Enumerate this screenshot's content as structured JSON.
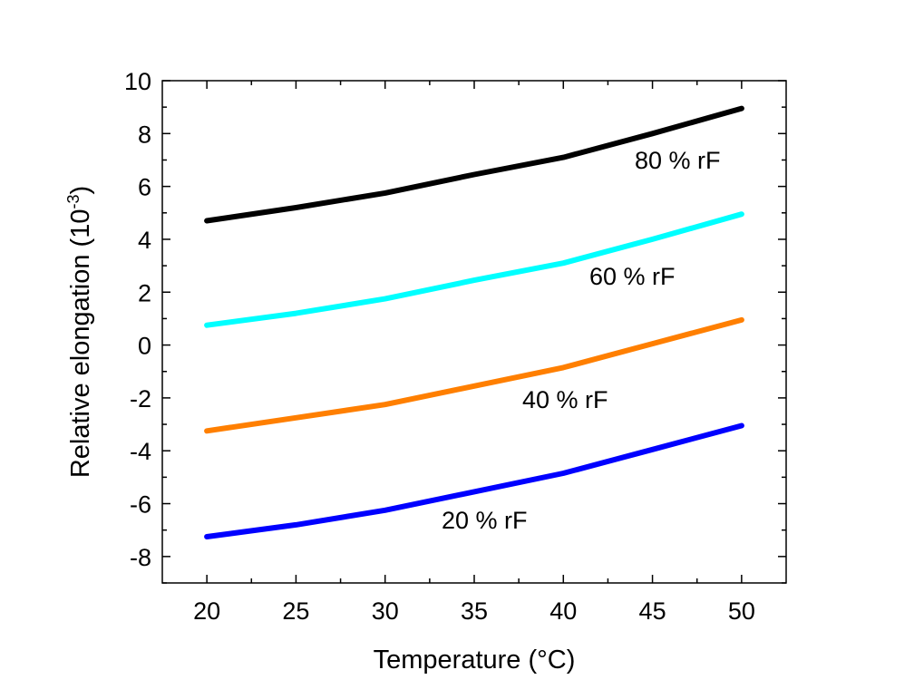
{
  "chart_data": {
    "type": "line",
    "title": "",
    "xlabel": "Temperature (°C)",
    "ylabel_text": "Relative elongation (10",
    "ylabel_exp": "-3",
    "ylabel_close": ")",
    "xlim": [
      17.5,
      52.5
    ],
    "ylim": [
      -9,
      10
    ],
    "xticks": [
      20,
      25,
      30,
      35,
      40,
      45,
      50
    ],
    "xtick_labels": [
      "20",
      "25",
      "30",
      "35",
      "40",
      "45",
      "50"
    ],
    "yticks": [
      -8,
      -6,
      -4,
      -2,
      0,
      2,
      4,
      6,
      8,
      10
    ],
    "ytick_labels": [
      "-8",
      "-6",
      "-4",
      "-2",
      "0",
      "2",
      "4",
      "6",
      "8",
      "10"
    ],
    "grid": false,
    "legend": "none",
    "x": [
      20,
      25,
      30,
      35,
      40,
      45,
      50
    ],
    "series": [
      {
        "name": "80 % rF",
        "color": "#000000",
        "values": [
          4.7,
          5.2,
          5.75,
          6.45,
          7.1,
          8.0,
          8.95
        ]
      },
      {
        "name": "60 % rF",
        "color": "#00ffff",
        "values": [
          0.75,
          1.2,
          1.75,
          2.45,
          3.1,
          4.0,
          4.95
        ]
      },
      {
        "name": "40 % rF",
        "color": "#ff7f00",
        "values": [
          -3.25,
          -2.75,
          -2.25,
          -1.55,
          -0.85,
          0.05,
          0.95
        ]
      },
      {
        "name": "20 % rF",
        "color": "#0000ff",
        "values": [
          -7.25,
          -6.8,
          -6.25,
          -5.55,
          -4.85,
          -3.95,
          -3.05
        ]
      }
    ],
    "annotations": [
      "80 % rF",
      "60 % rF",
      "40 % rF",
      "20 % rF"
    ]
  }
}
